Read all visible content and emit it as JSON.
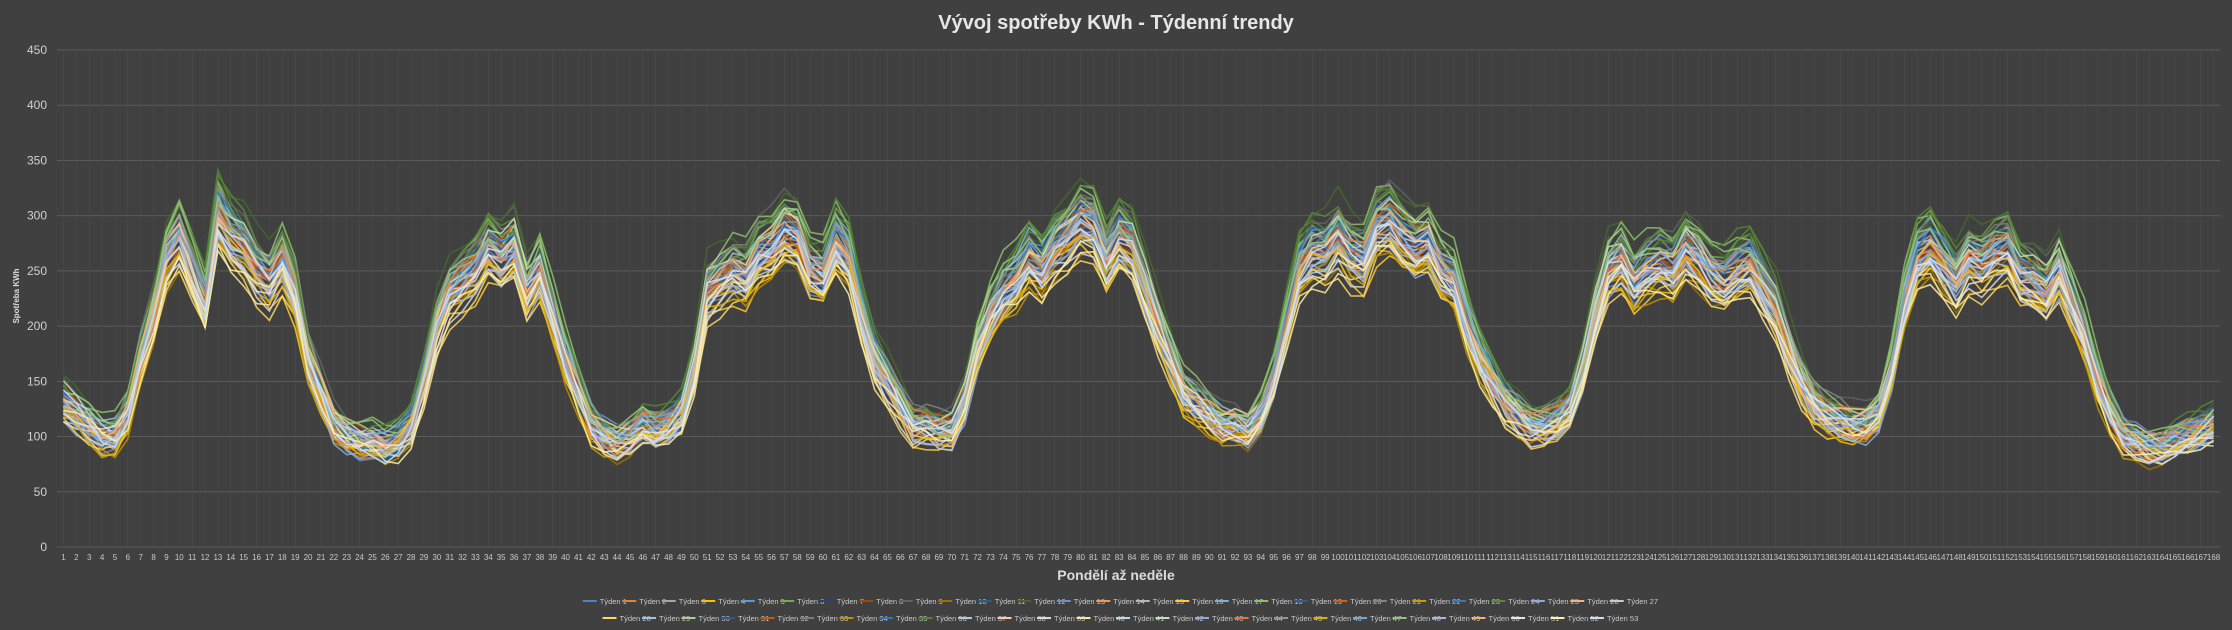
{
  "chart_data": {
    "type": "line",
    "title": "Vývoj spotřeby KWh - Týdenní trendy",
    "xlabel": "Pondělí až neděle",
    "ylabel": "Spotřeba KWh",
    "ylim": [
      0,
      450
    ],
    "yticks": [
      0,
      50,
      100,
      150,
      200,
      250,
      300,
      350,
      400,
      450
    ],
    "xlim": [
      1,
      168
    ],
    "grid": true,
    "legend_position": "bottom",
    "daily_profile_note_free": true,
    "base_profile_days": [
      [
        130,
        120,
        110,
        100,
        100,
        120,
        170,
        210,
        260,
        280,
        250,
        220,
        300,
        280,
        270,
        250,
        240,
        260,
        230,
        170,
        140,
        110,
        100,
        95
      ],
      [
        95,
        90,
        95,
        110,
        150,
        200,
        230,
        240,
        250,
        270,
        260,
        270,
        230,
        250,
        210,
        170,
        140,
        110,
        100,
        95,
        100,
        110,
        105,
        110
      ],
      [
        120,
        160,
        230,
        240,
        250,
        245,
        265,
        270,
        285,
        280,
        250,
        245,
        275,
        260,
        210,
        170,
        150,
        130,
        110,
        110,
        105,
        105,
        130,
        180
      ],
      [
        210,
        230,
        240,
        260,
        250,
        270,
        280,
        295,
        290,
        260,
        280,
        270,
        235,
        200,
        170,
        140,
        130,
        120,
        110,
        110,
        105,
        120,
        150,
        200
      ],
      [
        250,
        265,
        265,
        280,
        265,
        260,
        290,
        295,
        280,
        270,
        275,
        250,
        240,
        200,
        170,
        150,
        130,
        120,
        110,
        110,
        115,
        125,
        160,
        210
      ],
      [
        250,
        260,
        240,
        250,
        255,
        250,
        270,
        260,
        245,
        240,
        250,
        255,
        235,
        215,
        180,
        150,
        130,
        120,
        115,
        110,
        110,
        120,
        160,
        220
      ],
      [
        260,
        270,
        255,
        240,
        260,
        255,
        265,
        270,
        245,
        240,
        230,
        250,
        220,
        190,
        150,
        120,
        100,
        95,
        90,
        90,
        95,
        100,
        105,
        110
      ]
    ],
    "series": [
      {
        "name": "Týden 1",
        "color": "#4f81bd",
        "scale": 1.0
      },
      {
        "name": "Týden 2",
        "color": "#e5813a",
        "scale": 0.98
      },
      {
        "name": "Týden 3",
        "color": "#a5a5a5",
        "scale": 1.03
      },
      {
        "name": "Týden 4",
        "color": "#ffc000",
        "scale": 0.95
      },
      {
        "name": "Týden 5",
        "color": "#5b9bd5",
        "scale": 1.05
      },
      {
        "name": "Týden 6",
        "color": "#70ad47",
        "scale": 1.08
      },
      {
        "name": "Týden 7",
        "color": "#264478",
        "scale": 0.97
      },
      {
        "name": "Týden 8",
        "color": "#9e480e",
        "scale": 1.02
      },
      {
        "name": "Týden 9",
        "color": "#636363",
        "scale": 1.1
      },
      {
        "name": "Týden 10",
        "color": "#997300",
        "scale": 0.93
      },
      {
        "name": "Týden 11",
        "color": "#255e91",
        "scale": 1.04
      },
      {
        "name": "Týden 12",
        "color": "#43682b",
        "scale": 1.12
      },
      {
        "name": "Týden 13",
        "color": "#698ed0",
        "scale": 0.96
      },
      {
        "name": "Týden 14",
        "color": "#f1975a",
        "scale": 1.01
      },
      {
        "name": "Týden 15",
        "color": "#b7b7b7",
        "scale": 0.99
      },
      {
        "name": "Týden 16",
        "color": "#ffcd33",
        "scale": 0.92
      },
      {
        "name": "Týden 17",
        "color": "#7cafdd",
        "scale": 1.06
      },
      {
        "name": "Týden 18",
        "color": "#8cc168",
        "scale": 1.11
      },
      {
        "name": "Týden 19",
        "color": "#335aa1",
        "scale": 0.98
      },
      {
        "name": "Týden 20",
        "color": "#d26012",
        "scale": 1.03
      },
      {
        "name": "Týden 21",
        "color": "#848484",
        "scale": 1.07
      },
      {
        "name": "Týden 22",
        "color": "#cc9a00",
        "scale": 0.94
      },
      {
        "name": "Týden 23",
        "color": "#327dc2",
        "scale": 1.02
      },
      {
        "name": "Týden 24",
        "color": "#5a8a39",
        "scale": 1.09
      },
      {
        "name": "Týden 25",
        "color": "#8faadc",
        "scale": 0.95
      },
      {
        "name": "Týden 26",
        "color": "#f4b183",
        "scale": 1.0
      },
      {
        "name": "Týden 27",
        "color": "#c9c9c9",
        "scale": 0.97
      },
      {
        "name": "Týden 28",
        "color": "#ffd966",
        "scale": 0.91
      },
      {
        "name": "Týden 29",
        "color": "#9dc3e6",
        "scale": 1.03
      },
      {
        "name": "Týden 30",
        "color": "#a9d18e",
        "scale": 1.06
      },
      {
        "name": "Týden 31",
        "color": "#2f5597",
        "scale": 0.99
      },
      {
        "name": "Týden 32",
        "color": "#c55a11",
        "scale": 1.01
      },
      {
        "name": "Týden 33",
        "color": "#7b7b7b",
        "scale": 1.05
      },
      {
        "name": "Týden 34",
        "color": "#bf9000",
        "scale": 0.93
      },
      {
        "name": "Týden 35",
        "color": "#2e75b6",
        "scale": 1.04
      },
      {
        "name": "Týden 36",
        "color": "#548235",
        "scale": 1.1
      },
      {
        "name": "Týden 37",
        "color": "#b4c7e7",
        "scale": 0.96
      },
      {
        "name": "Týden 38",
        "color": "#f8cbad",
        "scale": 1.02
      },
      {
        "name": "Týden 39",
        "color": "#dbdbdb",
        "scale": 0.94
      },
      {
        "name": "Týden 40",
        "color": "#ffe699",
        "scale": 0.92
      },
      {
        "name": "Týden 41",
        "color": "#bdd7ee",
        "scale": 1.0
      },
      {
        "name": "Týden 42",
        "color": "#c5e0b4",
        "scale": 1.05
      },
      {
        "name": "Týden 43",
        "color": "#8eaadb",
        "scale": 0.98
      },
      {
        "name": "Týden 44",
        "color": "#e07b39",
        "scale": 1.01
      },
      {
        "name": "Týden 45",
        "color": "#959595",
        "scale": 1.04
      },
      {
        "name": "Týden 46",
        "color": "#e0b000",
        "scale": 0.95
      },
      {
        "name": "Týden 47",
        "color": "#6fa8dc",
        "scale": 1.02
      },
      {
        "name": "Týden 48",
        "color": "#93c47d",
        "scale": 1.07
      },
      {
        "name": "Týden 49",
        "color": "#a4b8e0",
        "scale": 0.97
      },
      {
        "name": "Týden 50",
        "color": "#f6b26b",
        "scale": 1.0
      },
      {
        "name": "Týden 51",
        "color": "#e6e6e6",
        "scale": 0.96
      },
      {
        "name": "Týden 52",
        "color": "#fff2a8",
        "scale": 0.93
      },
      {
        "name": "Týden 53",
        "color": "#cfe2f3",
        "scale": 0.99
      }
    ]
  }
}
